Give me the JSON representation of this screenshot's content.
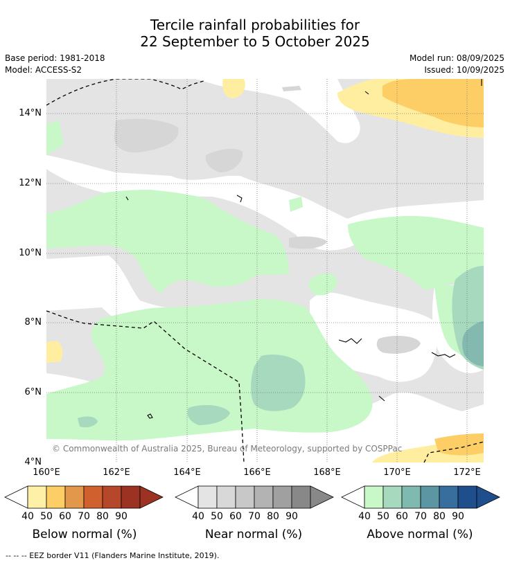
{
  "title_line1": "Tercile rainfall probabilities for",
  "title_line2": "22 September to 5 October 2025",
  "base_period": "Base period: 1981-2018",
  "model": "Model: ACCESS-S2",
  "model_run": "Model run: 08/09/2025",
  "issued": "Issued: 10/09/2025",
  "copyright": "© Commonwealth of Australia 2025, Bureau of Meteorology, supported by COSPPac",
  "footnote": "--  --  -- EEZ border V11 (Flanders Marine Institute, 2019).",
  "axes": {
    "y_ticks": [
      "14°N",
      "12°N",
      "10°N",
      "8°N",
      "6°N",
      "4°N"
    ],
    "x_ticks": [
      "160°E",
      "162°E",
      "164°E",
      "166°E",
      "168°E",
      "170°E",
      "172°E"
    ]
  },
  "legends": [
    {
      "title": "Below normal (%)",
      "labels": [
        "40",
        "50",
        "60",
        "70",
        "80",
        "90"
      ],
      "colors": [
        "#fff0a8",
        "#fdcd66",
        "#e3974a",
        "#d0602e",
        "#b5472a",
        "#9b3222"
      ]
    },
    {
      "title": "Near normal (%)",
      "labels": [
        "40",
        "50",
        "60",
        "70",
        "80",
        "90"
      ],
      "colors": [
        "#e4e4e4",
        "#d8d8d8",
        "#c8c8c8",
        "#b3b3b3",
        "#a0a0a0",
        "#888888"
      ]
    },
    {
      "title": "Above normal (%)",
      "labels": [
        "40",
        "50",
        "60",
        "70",
        "80",
        "90"
      ],
      "colors": [
        "#c8f7c8",
        "#a6d9bd",
        "#7fbab0",
        "#5c96a2",
        "#386e9e",
        "#1e4f8c"
      ]
    }
  ],
  "map_colors": {
    "near40": "#e4e4e4",
    "near50": "#d6d6d6",
    "above40": "#c8f7c8",
    "above50": "#a6d9bd",
    "above60": "#84b9b0",
    "below40": "#ffeea0",
    "below50": "#fdcd66"
  }
}
